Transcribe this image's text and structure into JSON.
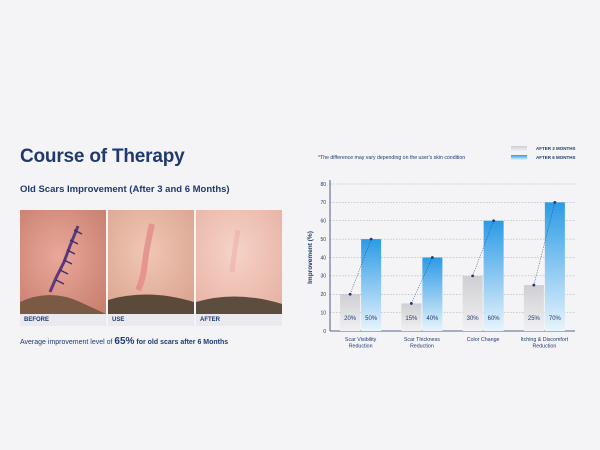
{
  "page": {
    "title": "Course of Therapy",
    "subtitle": "Old Scars Improvement (After 3 and 6 Months)",
    "photos": [
      {
        "label": "BEFORE"
      },
      {
        "label": "USE"
      },
      {
        "label": "AFTER"
      }
    ],
    "avg_note": {
      "prefix": "Average improvement level of ",
      "value": "65%",
      "suffix": " for old scars after 6 Months"
    }
  },
  "chart_data": {
    "type": "bar",
    "note": "*The difference may vary depending on the user's skin condition",
    "ylabel": "Improvement (%)",
    "xlabel": "",
    "ylim": [
      0,
      80
    ],
    "yticks": [
      0,
      10,
      20,
      30,
      40,
      50,
      60,
      70,
      80
    ],
    "grid": true,
    "legend_position": "top-right",
    "categories": [
      "Scar Visibility\nReduction",
      "Scar Thickness\nReduction",
      "Color Change",
      "Itching & Discomfort\nReduction"
    ],
    "series": [
      {
        "name": "AFTER 3 MONTHS",
        "values": [
          20,
          15,
          30,
          25
        ],
        "color": "#cfcfd3"
      },
      {
        "name": "AFTER 6 MONTHS",
        "values": [
          50,
          40,
          60,
          70
        ],
        "color": "#2b9be6"
      }
    ],
    "value_labels": [
      [
        "20%",
        "15%",
        "30%",
        "25%"
      ],
      [
        "50%",
        "40%",
        "60%",
        "70%"
      ]
    ]
  }
}
